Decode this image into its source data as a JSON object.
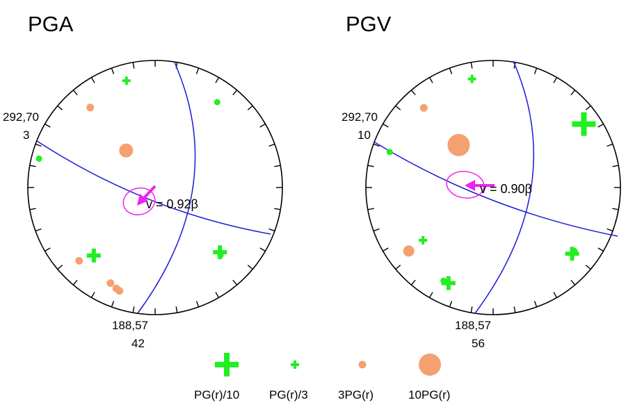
{
  "colors": {
    "circle": "#000000",
    "nodal_plane": "#1a1ad6",
    "low_ratio": "#22ee22",
    "high_ratio": "#f5a070",
    "direction": "#ee22ee"
  },
  "panels": [
    {
      "id": "pga",
      "title": "PGA",
      "strike_dip_top": "292,70",
      "value_top": "3",
      "strike_dip_bottom": "188,57",
      "value_bottom": "42",
      "velocity_label": "v = 0.92β",
      "markers": [
        {
          "type": "plus-small",
          "az": 345,
          "r": 0.87
        },
        {
          "type": "dot-green",
          "az": 36,
          "r": 0.83
        },
        {
          "type": "dot-orange-s",
          "az": 321,
          "r": 0.81
        },
        {
          "type": "dot-orange-l",
          "az": 322,
          "r": 0.37
        },
        {
          "type": "dot-green",
          "az": 284,
          "r": 0.94
        },
        {
          "type": "plus-mid",
          "az": 222,
          "r": 0.72
        },
        {
          "type": "dot-orange-s",
          "az": 226,
          "r": 0.83
        },
        {
          "type": "plus-mid",
          "az": 135,
          "r": 0.72
        },
        {
          "type": "dot-green",
          "az": 136,
          "r": 0.74
        },
        {
          "type": "dot-orange-s",
          "az": 205,
          "r": 0.83
        },
        {
          "type": "dot-orange-s",
          "az": 201,
          "r": 0.85
        },
        {
          "type": "dot-orange-s",
          "az": 199,
          "r": 0.86
        }
      ]
    },
    {
      "id": "pgv",
      "title": "PGV",
      "strike_dip_top": "292,70",
      "value_top": "10",
      "strike_dip_bottom": "188,57",
      "value_bottom": "56",
      "velocity_label": "v = 0.90β",
      "markers": [
        {
          "type": "plus-small",
          "az": 349,
          "r": 0.87
        },
        {
          "type": "plus-big",
          "az": 55,
          "r": 0.87
        },
        {
          "type": "dot-orange-s",
          "az": 319,
          "r": 0.83
        },
        {
          "type": "dot-orange-xl",
          "az": 321,
          "r": 0.43
        },
        {
          "type": "dot-green",
          "az": 289,
          "r": 0.86
        },
        {
          "type": "dot-orange-m",
          "az": 233,
          "r": 0.83
        },
        {
          "type": "plus-small",
          "az": 233,
          "r": 0.69
        },
        {
          "type": "plus-mid",
          "az": 205,
          "r": 0.83
        },
        {
          "type": "dot-green",
          "az": 208,
          "r": 0.83
        },
        {
          "type": "plus-mid",
          "az": 130,
          "r": 0.81
        },
        {
          "type": "dot-green",
          "az": 128,
          "r": 0.81
        }
      ]
    }
  ],
  "legend": [
    {
      "symbol": "plus-big",
      "label": "PG(r)/10"
    },
    {
      "symbol": "plus-small",
      "label": "PG(r)/3"
    },
    {
      "symbol": "dot-orange-s",
      "label": "3PG(r)"
    },
    {
      "symbol": "dot-orange-xl",
      "label": "10PG(r)"
    }
  ]
}
